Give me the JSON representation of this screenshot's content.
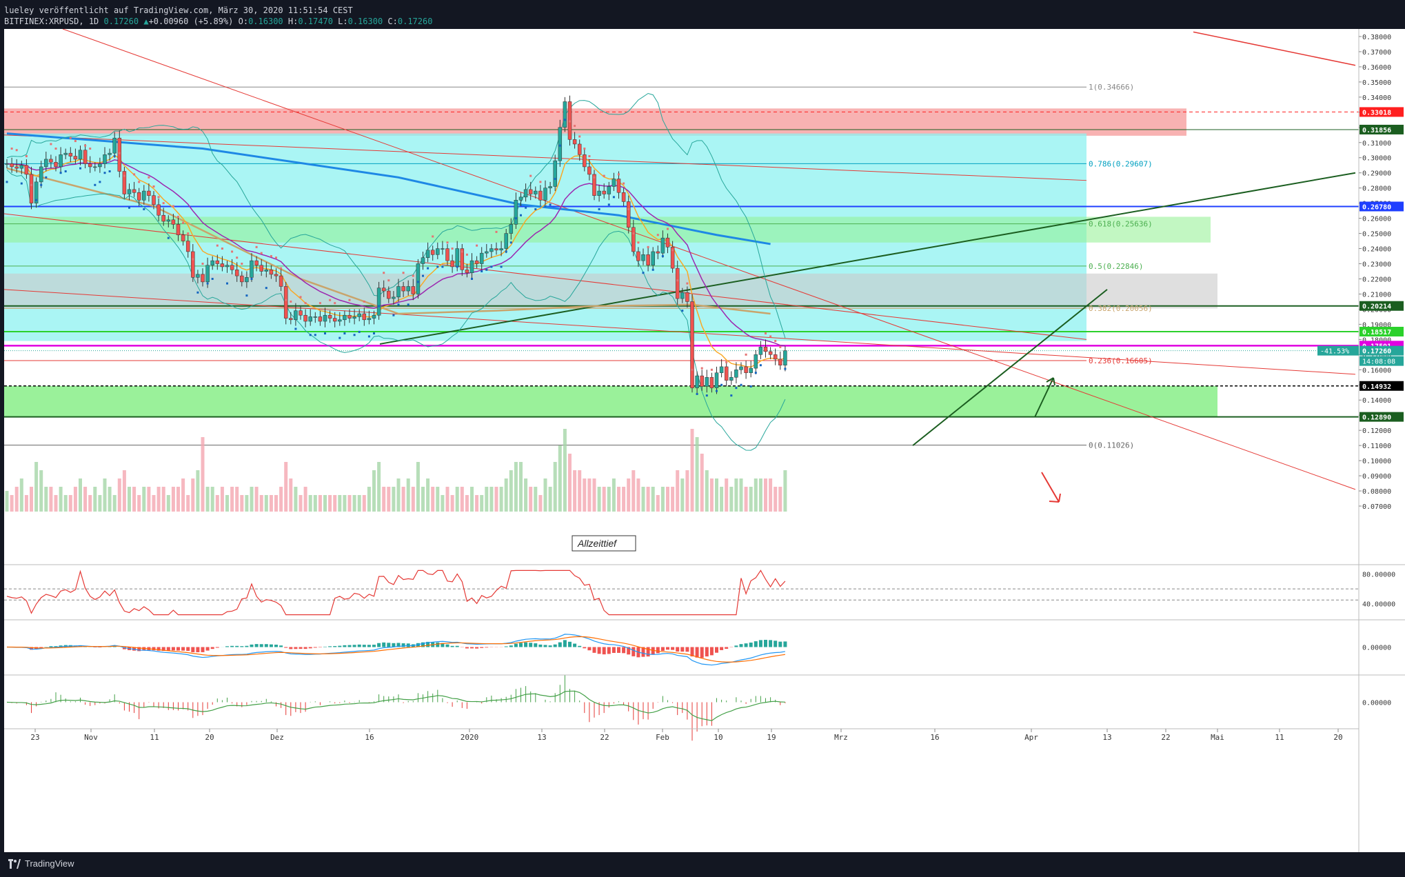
{
  "header": {
    "publish_line": "lueley veröffentlicht auf TradingView.com, März 30, 2020 11:51:54 CEST",
    "symbol": "BITFINEX:XRPUSD, 1D",
    "last": "0.17260",
    "change_arrow": "▲",
    "change": "+0.00960 (+5.89%)",
    "o_label": "O:",
    "o_value": "0.16300",
    "h_label": "H:",
    "h_value": "0.17470",
    "l_label": "L:",
    "l_value": "0.16300",
    "c_label": "C:",
    "c_value": "0.17260"
  },
  "footer": {
    "brand": "TradingView",
    "logo_icon": "tradingview-logo-icon"
  },
  "colors": {
    "background": "#ffffff",
    "candle_up": "#26a69a",
    "candle_down": "#ef5350",
    "red_zone": "#f7a4a4",
    "cyan_zone": "#8ef2f0",
    "green_zone": "#8ff08f",
    "grey_zone": "#c9c9c9",
    "ma_blue": "#1e88e5",
    "ma_gold": "#c9a46b",
    "ma_purple": "#9c27b0",
    "ma_orange": "#f9a825",
    "magenta": "#e100e1"
  },
  "chart_data": {
    "type": "candlestick",
    "symbol": "BITFINEX:XRPUSD",
    "timeframe": "1D",
    "ylim": [
      0.065,
      0.385
    ],
    "y_ticks": [
      "0.38000",
      "0.37000",
      "0.36000",
      "0.35000",
      "0.34000",
      "0.33000",
      "0.32000",
      "0.31000",
      "0.30000",
      "0.29000",
      "0.28000",
      "0.27000",
      "0.26000",
      "0.25000",
      "0.24000",
      "0.23000",
      "0.22000",
      "0.21000",
      "0.20000",
      "0.19000",
      "0.18000",
      "0.17000",
      "0.16000",
      "0.15000",
      "0.14000",
      "0.13000",
      "0.12000",
      "0.11000",
      "0.10000",
      "0.09000",
      "0.08000",
      "0.07000"
    ],
    "x_ticks": [
      "23",
      "Nov",
      "11",
      "20",
      "Dez",
      "16",
      "2020",
      "13",
      "22",
      "Feb",
      "10",
      "19",
      "Mrz",
      "16",
      "Apr",
      "13",
      "22",
      "Mai",
      "11",
      "20"
    ],
    "price_labels": [
      {
        "value": 0.33018,
        "text": "0.33018",
        "bg": "#ff1f1f",
        "fg": "#ffffff"
      },
      {
        "value": 0.31856,
        "text": "0.31856",
        "bg": "#1b5e20",
        "fg": "#ffffff"
      },
      {
        "value": 0.2678,
        "text": "0.26780",
        "bg": "#1f3fff",
        "fg": "#ffffff"
      },
      {
        "value": 0.20214,
        "text": "0.20214",
        "bg": "#1b5e20",
        "fg": "#ffffff"
      },
      {
        "value": 0.18517,
        "text": "0.18517",
        "bg": "#2bd12b",
        "fg": "#ffffff"
      },
      {
        "value": 0.17591,
        "text": "0.17591",
        "bg": "#e100e1",
        "fg": "#ffffff"
      },
      {
        "value": 0.1726,
        "text": "0.17260",
        "bg": "#26a69a",
        "fg": "#ffffff"
      },
      {
        "value": 0.14932,
        "text": "0.14932",
        "bg": "#000000",
        "fg": "#ffffff"
      },
      {
        "value": 0.1289,
        "text": "0.12890",
        "bg": "#1b5e20",
        "fg": "#ffffff"
      }
    ],
    "last_price_pct": "-41.53%",
    "countdown": "14:08:08",
    "fib_levels": [
      {
        "ratio": "1",
        "value": "0.34666"
      },
      {
        "ratio": "0.786",
        "value": "0.29607"
      },
      {
        "ratio": "0.618",
        "value": "0.25636"
      },
      {
        "ratio": "0.5",
        "value": "0.22846"
      },
      {
        "ratio": "0.382",
        "value": "0.20056"
      },
      {
        "ratio": "0.236",
        "value": "0.16605"
      },
      {
        "ratio": "0",
        "value": "0.11026"
      }
    ],
    "annotation": "Allzeittief",
    "rsi_ticks": [
      "80.00000",
      "40.00000"
    ],
    "macd_ticks": [
      "0.00000"
    ],
    "osc_ticks": [
      "0.00000"
    ],
    "closes": [
      0.296,
      0.294,
      0.293,
      0.295,
      0.289,
      0.27,
      0.284,
      0.294,
      0.299,
      0.297,
      0.294,
      0.302,
      0.303,
      0.301,
      0.299,
      0.305,
      0.296,
      0.294,
      0.294,
      0.296,
      0.302,
      0.303,
      0.313,
      0.291,
      0.276,
      0.279,
      0.277,
      0.272,
      0.278,
      0.275,
      0.269,
      0.262,
      0.258,
      0.259,
      0.256,
      0.249,
      0.245,
      0.238,
      0.221,
      0.223,
      0.218,
      0.229,
      0.232,
      0.23,
      0.228,
      0.229,
      0.226,
      0.222,
      0.218,
      0.221,
      0.232,
      0.229,
      0.225,
      0.226,
      0.223,
      0.222,
      0.215,
      0.194,
      0.193,
      0.199,
      0.196,
      0.192,
      0.195,
      0.195,
      0.192,
      0.196,
      0.194,
      0.192,
      0.193,
      0.196,
      0.194,
      0.195,
      0.197,
      0.193,
      0.194,
      0.196,
      0.214,
      0.212,
      0.207,
      0.208,
      0.215,
      0.212,
      0.215,
      0.21,
      0.23,
      0.234,
      0.239,
      0.236,
      0.24,
      0.24,
      0.232,
      0.228,
      0.24,
      0.226,
      0.224,
      0.232,
      0.23,
      0.237,
      0.238,
      0.24,
      0.239,
      0.24,
      0.25,
      0.256,
      0.272,
      0.274,
      0.279,
      0.276,
      0.278,
      0.272,
      0.28,
      0.281,
      0.298,
      0.32,
      0.337,
      0.312,
      0.309,
      0.302,
      0.294,
      0.289,
      0.275,
      0.278,
      0.276,
      0.281,
      0.286,
      0.277,
      0.271,
      0.254,
      0.238,
      0.232,
      0.236,
      0.229,
      0.238,
      0.237,
      0.247,
      0.241,
      0.227,
      0.207,
      0.211,
      0.205,
      0.148,
      0.156,
      0.149,
      0.155,
      0.148,
      0.158,
      0.162,
      0.153,
      0.155,
      0.16,
      0.162,
      0.158,
      0.161,
      0.17,
      0.175,
      0.172,
      0.17,
      0.167,
      0.163,
      0.1726
    ],
    "volume": [
      0.25,
      0.2,
      0.3,
      0.4,
      0.2,
      0.3,
      0.6,
      0.5,
      0.3,
      0.3,
      0.2,
      0.3,
      0.2,
      0.2,
      0.3,
      0.4,
      0.3,
      0.2,
      0.3,
      0.2,
      0.4,
      0.3,
      0.2,
      0.4,
      0.5,
      0.3,
      0.3,
      0.2,
      0.3,
      0.3,
      0.2,
      0.3,
      0.3,
      0.2,
      0.3,
      0.3,
      0.4,
      0.2,
      0.4,
      0.5,
      0.9,
      0.3,
      0.3,
      0.2,
      0.3,
      0.2,
      0.3,
      0.3,
      0.2,
      0.2,
      0.3,
      0.3,
      0.2,
      0.2,
      0.2,
      0.2,
      0.3,
      0.6,
      0.4,
      0.3,
      0.2,
      0.3,
      0.2,
      0.2,
      0.2,
      0.2,
      0.2,
      0.2,
      0.2,
      0.2,
      0.2,
      0.2,
      0.2,
      0.2,
      0.3,
      0.5,
      0.6,
      0.3,
      0.3,
      0.3,
      0.4,
      0.3,
      0.4,
      0.3,
      0.6,
      0.3,
      0.4,
      0.3,
      0.3,
      0.2,
      0.3,
      0.2,
      0.3,
      0.3,
      0.2,
      0.3,
      0.2,
      0.2,
      0.3,
      0.3,
      0.3,
      0.3,
      0.4,
      0.5,
      0.6,
      0.6,
      0.4,
      0.3,
      0.3,
      0.2,
      0.4,
      0.3,
      0.6,
      0.8,
      1.0,
      0.7,
      0.5,
      0.5,
      0.4,
      0.4,
      0.4,
      0.3,
      0.3,
      0.3,
      0.4,
      0.3,
      0.3,
      0.4,
      0.5,
      0.4,
      0.3,
      0.3,
      0.3,
      0.2,
      0.3,
      0.3,
      0.3,
      0.5,
      0.4,
      0.5,
      1.0,
      0.9,
      0.7,
      0.5,
      0.4,
      0.4,
      0.3,
      0.4,
      0.3,
      0.4,
      0.4,
      0.3,
      0.3,
      0.4,
      0.4,
      0.4,
      0.4,
      0.3,
      0.3,
      0.5
    ],
    "sma200": [
      [
        0,
        0.316
      ],
      [
        40,
        0.306
      ],
      [
        80,
        0.287
      ],
      [
        105,
        0.269
      ],
      [
        125,
        0.262
      ],
      [
        145,
        0.249
      ],
      [
        156,
        0.243
      ]
    ],
    "ma_gold": [
      [
        0,
        0.293
      ],
      [
        30,
        0.268
      ],
      [
        60,
        0.22
      ],
      [
        80,
        0.197
      ],
      [
        100,
        0.199
      ],
      [
        120,
        0.202
      ],
      [
        140,
        0.203
      ],
      [
        156,
        0.197
      ]
    ]
  }
}
